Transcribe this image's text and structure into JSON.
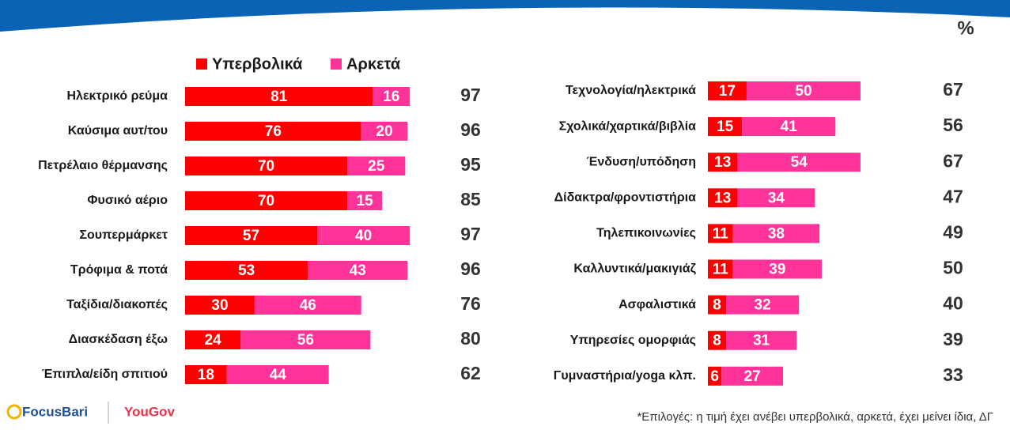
{
  "unit_label": "%",
  "footnote": "*Επιλογές: η τιμή έχει ανέβει υπερβολικά, αρκετά, έχει μείνει ίδια, ΔΓ",
  "logos": [
    "FocusBari",
    "YouGov"
  ],
  "chart_data": [
    {
      "type": "bar",
      "orientation": "horizontal",
      "stacked": true,
      "categories": [
        "Ηλεκτρικό ρεύμα",
        "Καύσιμα αυτ/του",
        "Πετρέλαιο θέρμανσης",
        "Φυσικό αέριο",
        "Σουπερμάρκετ",
        "Τρόφιμα & ποτά",
        "Ταξίδια/διακοπές",
        "Διασκέδαση έξω",
        "Έπιπλα/είδη σπιτιού"
      ],
      "series": [
        {
          "name": "Υπερβολικά",
          "color": "#ff0000",
          "values": [
            81,
            76,
            70,
            70,
            57,
            53,
            30,
            24,
            18
          ]
        },
        {
          "name": "Αρκετά",
          "color": "#ff3399",
          "values": [
            16,
            20,
            25,
            15,
            40,
            43,
            46,
            56,
            44
          ]
        }
      ],
      "totals": [
        97,
        96,
        95,
        85,
        97,
        96,
        76,
        80,
        62
      ],
      "xlim": [
        0,
        100
      ]
    },
    {
      "type": "bar",
      "orientation": "horizontal",
      "stacked": true,
      "categories": [
        "Τεχνολογία/ηλεκτρικά",
        "Σχολικά/χαρτικά/βιβλία",
        "Ένδυση/υπόδηση",
        "Δίδακτρα/φροντιστήρια",
        "Τηλεπικοινωνίες",
        "Καλλυντικά/μακιγιάζ",
        "Ασφαλιστικά",
        "Υπηρεσίες ομορφιάς",
        "Γυμναστήρια/yoga κλπ."
      ],
      "series": [
        {
          "color": "#ff0000",
          "values": [
            17,
            15,
            13,
            13,
            11,
            11,
            8,
            8,
            6
          ]
        },
        {
          "color": "#ff3399",
          "values": [
            50,
            41,
            54,
            34,
            38,
            39,
            32,
            31,
            27
          ]
        }
      ],
      "totals": [
        67,
        56,
        67,
        47,
        49,
        50,
        40,
        39,
        33
      ],
      "xlim": [
        0,
        100
      ]
    }
  ]
}
